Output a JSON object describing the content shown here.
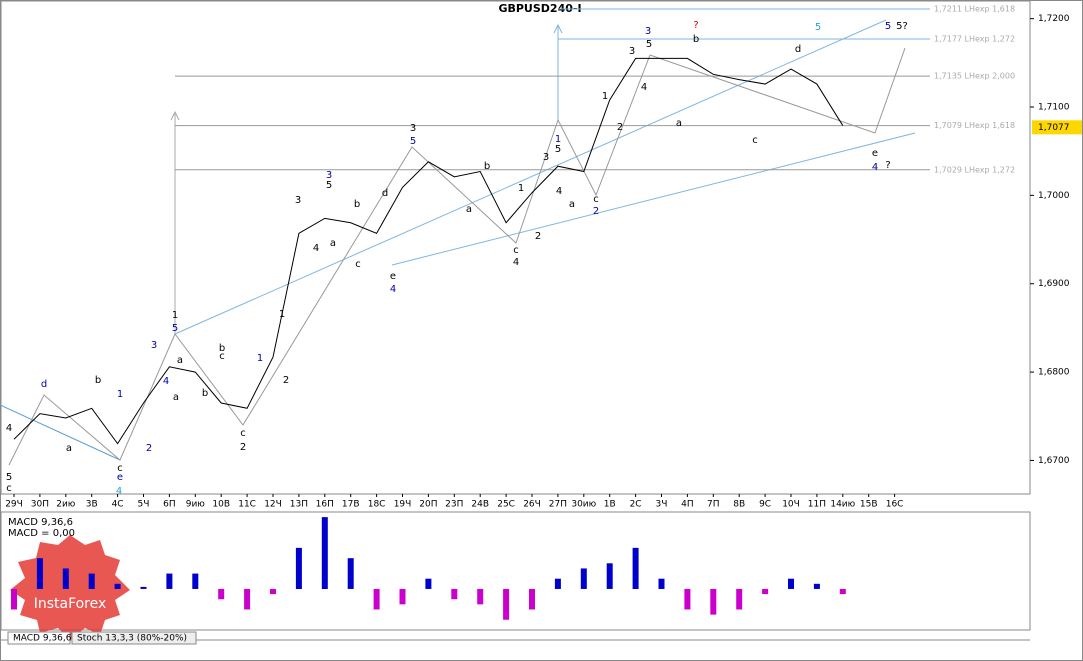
{
  "chart_data": {
    "type": "line",
    "title": "GBPUSD240-I",
    "categories": [
      "29Ч",
      "30П",
      "2ию",
      "3В",
      "4С",
      "5Ч",
      "6П",
      "9ию",
      "10В",
      "11С",
      "12Ч",
      "13П",
      "16П",
      "17В",
      "18С",
      "19Ч",
      "20П",
      "23П",
      "24В",
      "25С",
      "26Ч",
      "27П",
      "30ию",
      "1В",
      "2С",
      "3Ч",
      "4П",
      "7П",
      "8В",
      "9С",
      "10Ч",
      "11П",
      "14ию",
      "15В",
      "16С"
    ],
    "series": [
      {
        "name": "GBPUSD",
        "color": "#000000",
        "values": [
          1.6724,
          1.6753,
          1.6748,
          1.6759,
          1.6719,
          1.6765,
          1.6806,
          1.68,
          1.6765,
          1.6759,
          1.6817,
          1.6957,
          1.6974,
          1.6969,
          1.6957,
          1.7009,
          1.7038,
          1.7021,
          1.7027,
          1.6969,
          1.7003,
          1.7033,
          1.7027,
          1.7108,
          1.7155,
          1.7155,
          1.7155,
          1.7137,
          1.7131,
          1.7126,
          1.7143,
          1.7126,
          1.7079,
          null,
          null
        ]
      }
    ],
    "ylim": [
      1.6662,
      1.722
    ],
    "yticks": [
      {
        "value": 1.67,
        "label": "1,6700"
      },
      {
        "value": 1.68,
        "label": "1,6800"
      },
      {
        "value": 1.69,
        "label": "1,6900"
      },
      {
        "value": 1.7,
        "label": "1,7000"
      },
      {
        "value": 1.71,
        "label": "1,7100"
      },
      {
        "value": 1.72,
        "label": "1,7200"
      }
    ],
    "current_price": {
      "value": 1.7077,
      "label": "1,7077"
    },
    "levels": [
      {
        "value": 1.7211,
        "label": "1,7211 LHexp 1,618",
        "color": "#7fb6e0"
      },
      {
        "value": 1.7177,
        "label": "1,7177 LHexp 1,272",
        "color": "#7fb6e0"
      },
      {
        "value": 1.7135,
        "label": "1,7135 LHexp 2,000",
        "color": "#999999"
      },
      {
        "value": 1.7079,
        "label": "1,7079 LHexp 1,618",
        "color": "#999999"
      },
      {
        "value": 1.7029,
        "label": "1,7029 LHexp 1,272",
        "color": "#999999"
      }
    ],
    "annotations": [
      "5",
      "c",
      "4",
      "d",
      "a",
      "b",
      "1",
      "2",
      "c",
      "e",
      "4",
      "3",
      "4",
      "a",
      "1",
      "5",
      "a",
      "b",
      "b",
      "c",
      "1",
      "c",
      "2",
      "1",
      "2",
      "3",
      "4",
      "3",
      "5",
      "a",
      "b",
      "c",
      "d",
      "e",
      "4",
      "3",
      "5",
      "a",
      "b",
      "1",
      "c",
      "4",
      "2",
      "3",
      "1",
      "5",
      "4",
      "a",
      "c",
      "2",
      "1",
      "2",
      "3",
      "3",
      "5",
      "4",
      "a",
      "?",
      "b",
      "5",
      "c",
      "d",
      "5",
      "5?",
      "e",
      "4",
      "?"
    ],
    "macd": {
      "label": "MACD 9,36,6",
      "value_label": "MACD = 0,00",
      "ylim": [
        -0.004,
        0.0075
      ],
      "pos_color": "#0000cc",
      "neg_color": "#cc00cc",
      "values": [
        -0.002,
        0.003,
        0.002,
        0.0015,
        0.0005,
        0.0002,
        0.0015,
        0.0015,
        -0.001,
        -0.002,
        -0.0005,
        0.004,
        0.007,
        0.003,
        -0.002,
        -0.0015,
        0.001,
        -0.001,
        -0.0015,
        -0.003,
        -0.002,
        0.001,
        0.002,
        0.0025,
        0.004,
        0.001,
        -0.002,
        -0.0025,
        -0.002,
        -0.0005,
        0.001,
        0.0005,
        -0.0005,
        null,
        null
      ]
    },
    "tabs": [
      "MACD 9,36,6",
      "Stoch 13,3,3 (80%-20%)"
    ],
    "logo": "InstaForex"
  }
}
